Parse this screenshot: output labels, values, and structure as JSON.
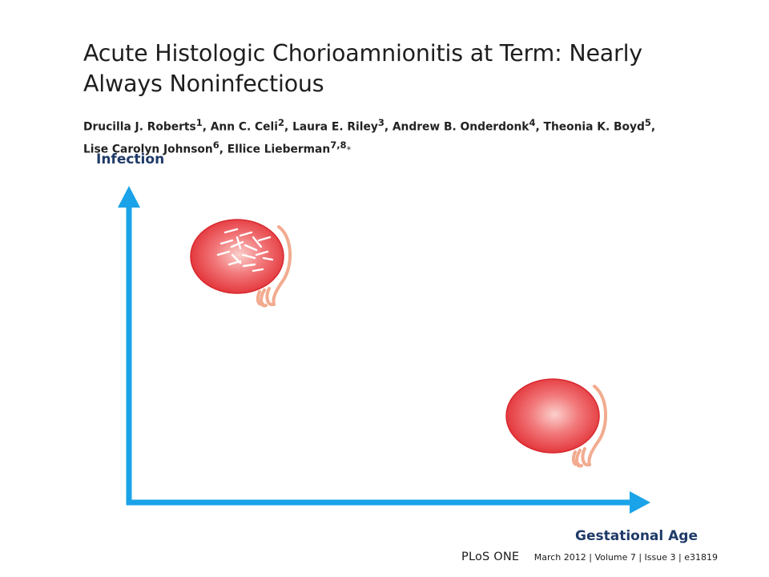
{
  "paper": {
    "title": "Acute Histologic Chorioamnionitis at Term: Nearly Always Noninfectious",
    "authors": [
      {
        "name": "Drucilla J. Roberts",
        "aff": "1"
      },
      {
        "name": "Ann C. Celi",
        "aff": "2"
      },
      {
        "name": "Laura E. Riley",
        "aff": "3"
      },
      {
        "name": "Andrew B. Onderdonk",
        "aff": "4"
      },
      {
        "name": "Theonia K. Boyd",
        "aff": "5"
      },
      {
        "name": "Lise Carolyn Johnson",
        "aff": "6"
      },
      {
        "name": "Ellice Lieberman",
        "aff": "7,8"
      }
    ],
    "corresponding_mark": "*"
  },
  "diagram": {
    "y_axis_label": "Infection",
    "x_axis_label": "Gestational Age",
    "axis_color": "#1aa3e8",
    "label_color": "#1f3a68",
    "placenta_color": "#e8383d",
    "cord_color": "#f0a890",
    "placentas": [
      {
        "label": "infected placenta with bacteria (early gestation)",
        "has_bacteria": true
      },
      {
        "label": "non-infected placenta (term)",
        "has_bacteria": false
      }
    ]
  },
  "footer": {
    "journal": "PLoS ONE",
    "citation": "March 2012  |  Volume 7  |  Issue 3  |  e31819"
  }
}
